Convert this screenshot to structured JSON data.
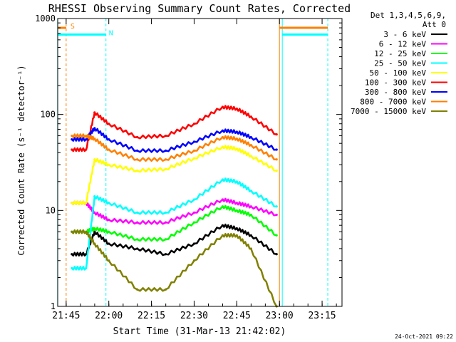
{
  "chart_data": {
    "type": "line",
    "title": "RHESSI Observing Summary Count Rates, Corrected",
    "xlabel": "Start Time (31-Mar-13 21:42:02)",
    "ylabel": "Corrected Count Rate (s⁻¹ detector⁻¹)",
    "yscale": "log",
    "ylim": [
      1,
      1000
    ],
    "xlim": [
      "21:42:02",
      "23:22"
    ],
    "x_ticks": [
      "21:45",
      "22:00",
      "22:15",
      "22:30",
      "22:45",
      "23:00",
      "23:15"
    ],
    "y_ticks": [
      "1",
      "10",
      "100",
      "1000"
    ],
    "legend_header": [
      "Det 1,3,4,5,6,9,",
      "Att 0"
    ],
    "legend_position": "right",
    "footer": "24-Oct-2021 09:22",
    "flags": [
      {
        "label": "S",
        "color": "#ff8000",
        "ranges": [
          [
            "21:42",
            "21:45"
          ],
          [
            "23:00",
            "23:17"
          ]
        ],
        "level": 800
      },
      {
        "label": "N",
        "color": "#00ffff",
        "ranges": [
          [
            "21:42",
            "21:59"
          ],
          [
            "23:01",
            "23:17"
          ]
        ],
        "level": 680
      }
    ],
    "vertical_lines": [
      {
        "x": "21:45",
        "color": "#ff8000",
        "style": "dashed"
      },
      {
        "x": "21:42",
        "color": "#00ffff",
        "style": "solid"
      },
      {
        "x": "21:59",
        "color": "#00ffff",
        "style": "dashed"
      },
      {
        "x": "23:00",
        "color": "#ff8000",
        "style": "solid"
      },
      {
        "x": "23:01",
        "color": "#00ffff",
        "style": "solid"
      },
      {
        "x": "23:17",
        "color": "#00ffff",
        "style": "dashed"
      }
    ],
    "x": [
      "21:47",
      "21:52",
      "21:55",
      "22:00",
      "22:10",
      "22:20",
      "22:30",
      "22:40",
      "22:45",
      "22:50",
      "22:59"
    ],
    "series": [
      {
        "name": "3 - 6 keV",
        "color": "#000000",
        "values": [
          3.5,
          3.5,
          6.0,
          4.5,
          4.0,
          3.5,
          4.5,
          7.0,
          6.5,
          5.5,
          3.5
        ]
      },
      {
        "name": "6 - 12 keV",
        "color": "#ff00ff",
        "values": [
          12,
          12,
          9.5,
          8.0,
          7.5,
          7.5,
          9.5,
          13,
          12,
          11,
          9
        ]
      },
      {
        "name": "12 - 25 keV",
        "color": "#00ff00",
        "values": [
          6.0,
          6.0,
          6.5,
          6.0,
          5.0,
          5.0,
          7.5,
          11,
          10,
          9,
          5.5
        ]
      },
      {
        "name": "25 - 50 keV",
        "color": "#00ffff",
        "values": [
          2.5,
          2.5,
          14,
          12,
          9.5,
          9.5,
          13,
          21,
          20,
          16,
          11
        ]
      },
      {
        "name": "50 - 100 keV",
        "color": "#ffff00",
        "values": [
          12,
          12,
          34,
          30,
          26,
          27,
          35,
          46,
          44,
          37,
          26
        ]
      },
      {
        "name": "100 - 300 keV",
        "color": "#ff0000",
        "values": [
          43,
          43,
          105,
          80,
          58,
          60,
          80,
          120,
          115,
          95,
          62
        ]
      },
      {
        "name": "300 - 800 keV",
        "color": "#0000ff",
        "values": [
          55,
          55,
          72,
          55,
          42,
          42,
          52,
          68,
          66,
          58,
          43
        ]
      },
      {
        "name": "800 - 7000 keV",
        "color": "#ff8000",
        "values": [
          60,
          60,
          56,
          43,
          34,
          34,
          42,
          58,
          56,
          48,
          34
        ]
      },
      {
        "name": "7000 - 15000 keV",
        "color": "#808000",
        "values": [
          6.0,
          6.0,
          4.5,
          3.0,
          1.5,
          1.5,
          3.0,
          5.5,
          5.5,
          4.0,
          1.0
        ]
      }
    ]
  }
}
